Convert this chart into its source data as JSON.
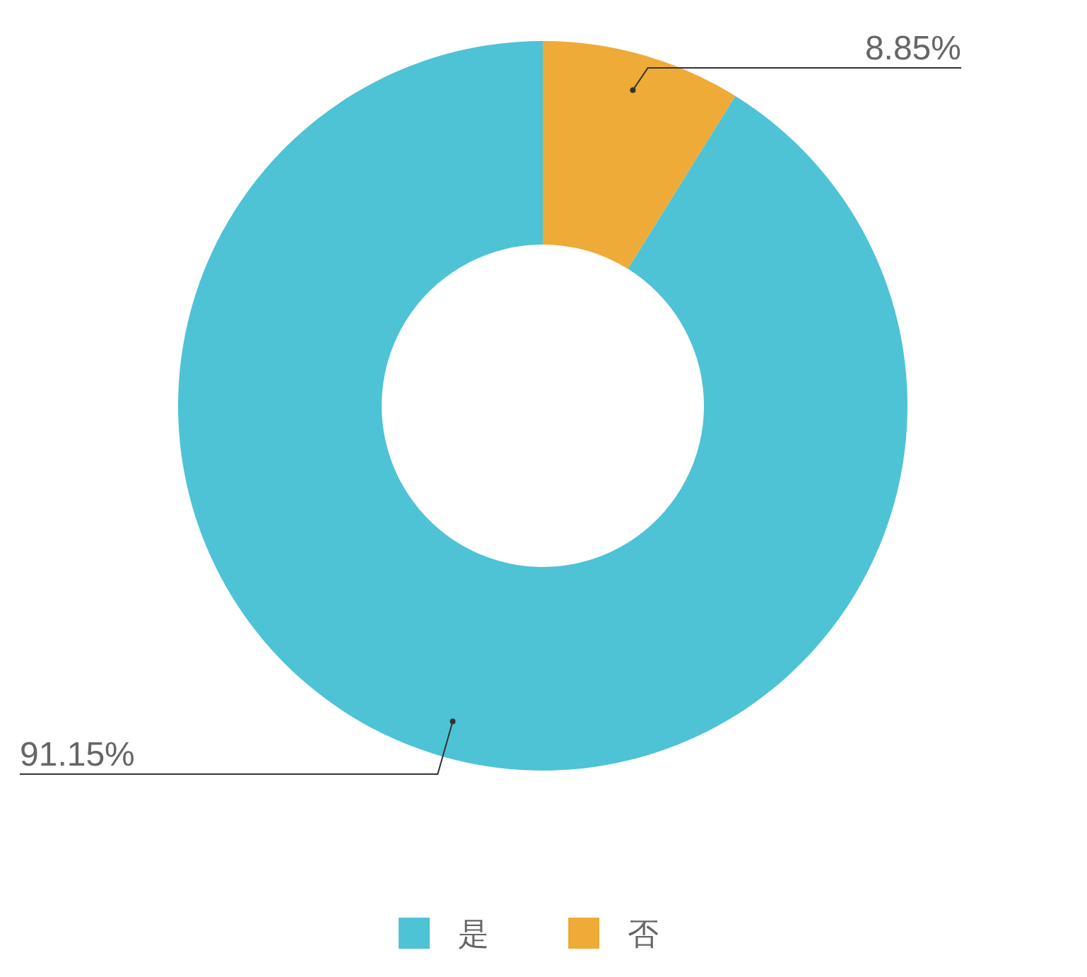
{
  "chart_data": {
    "type": "donut",
    "categories": [
      "是",
      "否"
    ],
    "values": [
      91.15,
      8.85
    ],
    "colors": [
      "#4dc3d5",
      "#eeab37"
    ],
    "value_labels": [
      "91.15%",
      "8.85%"
    ],
    "legend": "bottom"
  }
}
